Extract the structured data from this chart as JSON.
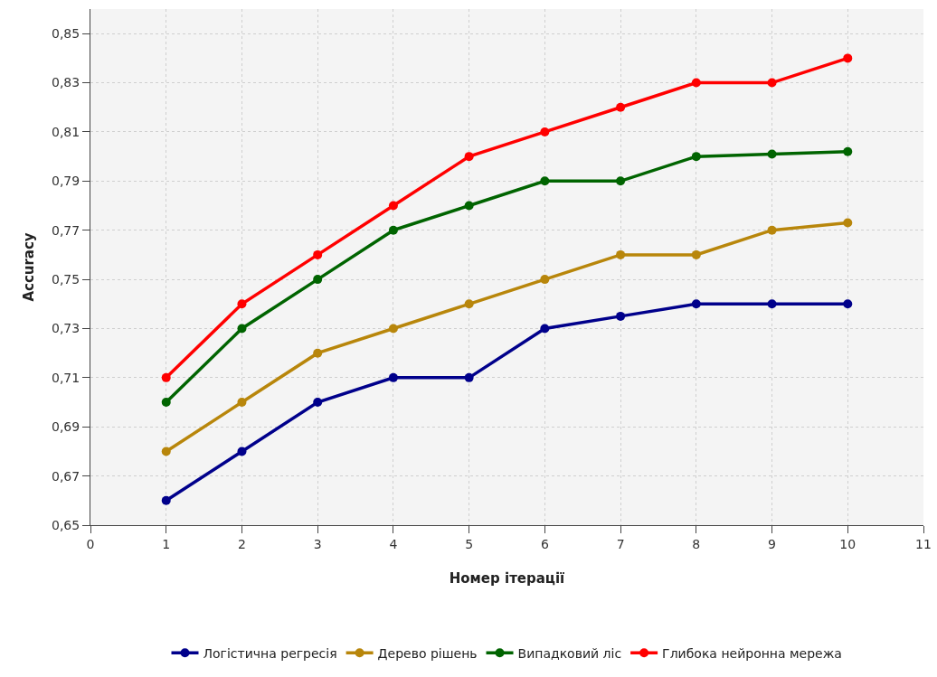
{
  "chart_data": {
    "type": "line",
    "xlabel": "Номер ітерації",
    "ylabel": "Accuracy",
    "x": [
      1,
      2,
      3,
      4,
      5,
      6,
      7,
      8,
      9,
      10
    ],
    "series": [
      {
        "name": "Логістична регресія",
        "color": "#00008b",
        "values": [
          0.66,
          0.68,
          0.7,
          0.71,
          0.71,
          0.73,
          0.735,
          0.74,
          0.74,
          0.74
        ]
      },
      {
        "name": "Дерево рішень",
        "color": "#b8860b",
        "values": [
          0.68,
          0.7,
          0.72,
          0.73,
          0.74,
          0.75,
          0.76,
          0.76,
          0.77,
          0.773
        ]
      },
      {
        "name": "Випадковий ліс",
        "color": "#006400",
        "values": [
          0.7,
          0.73,
          0.75,
          0.77,
          0.78,
          0.79,
          0.79,
          0.8,
          0.801,
          0.802
        ]
      },
      {
        "name": "Глибока нейронна мережа",
        "color": "#ff0000",
        "values": [
          0.71,
          0.74,
          0.76,
          0.78,
          0.8,
          0.81,
          0.82,
          0.83,
          0.83,
          0.84
        ]
      }
    ],
    "xlim": [
      0,
      11
    ],
    "xticks": [
      0,
      1,
      2,
      3,
      4,
      5,
      6,
      7,
      8,
      9,
      10,
      11
    ],
    "ylim": [
      0.65,
      0.86
    ],
    "yticks": [
      {
        "value": 0.65,
        "label": "0,65"
      },
      {
        "value": 0.67,
        "label": "0,67"
      },
      {
        "value": 0.69,
        "label": "0,69"
      },
      {
        "value": 0.71,
        "label": "0,71"
      },
      {
        "value": 0.73,
        "label": "0,73"
      },
      {
        "value": 0.75,
        "label": "0,75"
      },
      {
        "value": 0.77,
        "label": "0,77"
      },
      {
        "value": 0.79,
        "label": "0,79"
      },
      {
        "value": 0.81,
        "label": "0,81"
      },
      {
        "value": 0.83,
        "label": "0,83"
      },
      {
        "value": 0.85,
        "label": "0,85"
      }
    ],
    "grid": true,
    "legend": "bottom",
    "marker": "circle",
    "line_style": "solid"
  }
}
